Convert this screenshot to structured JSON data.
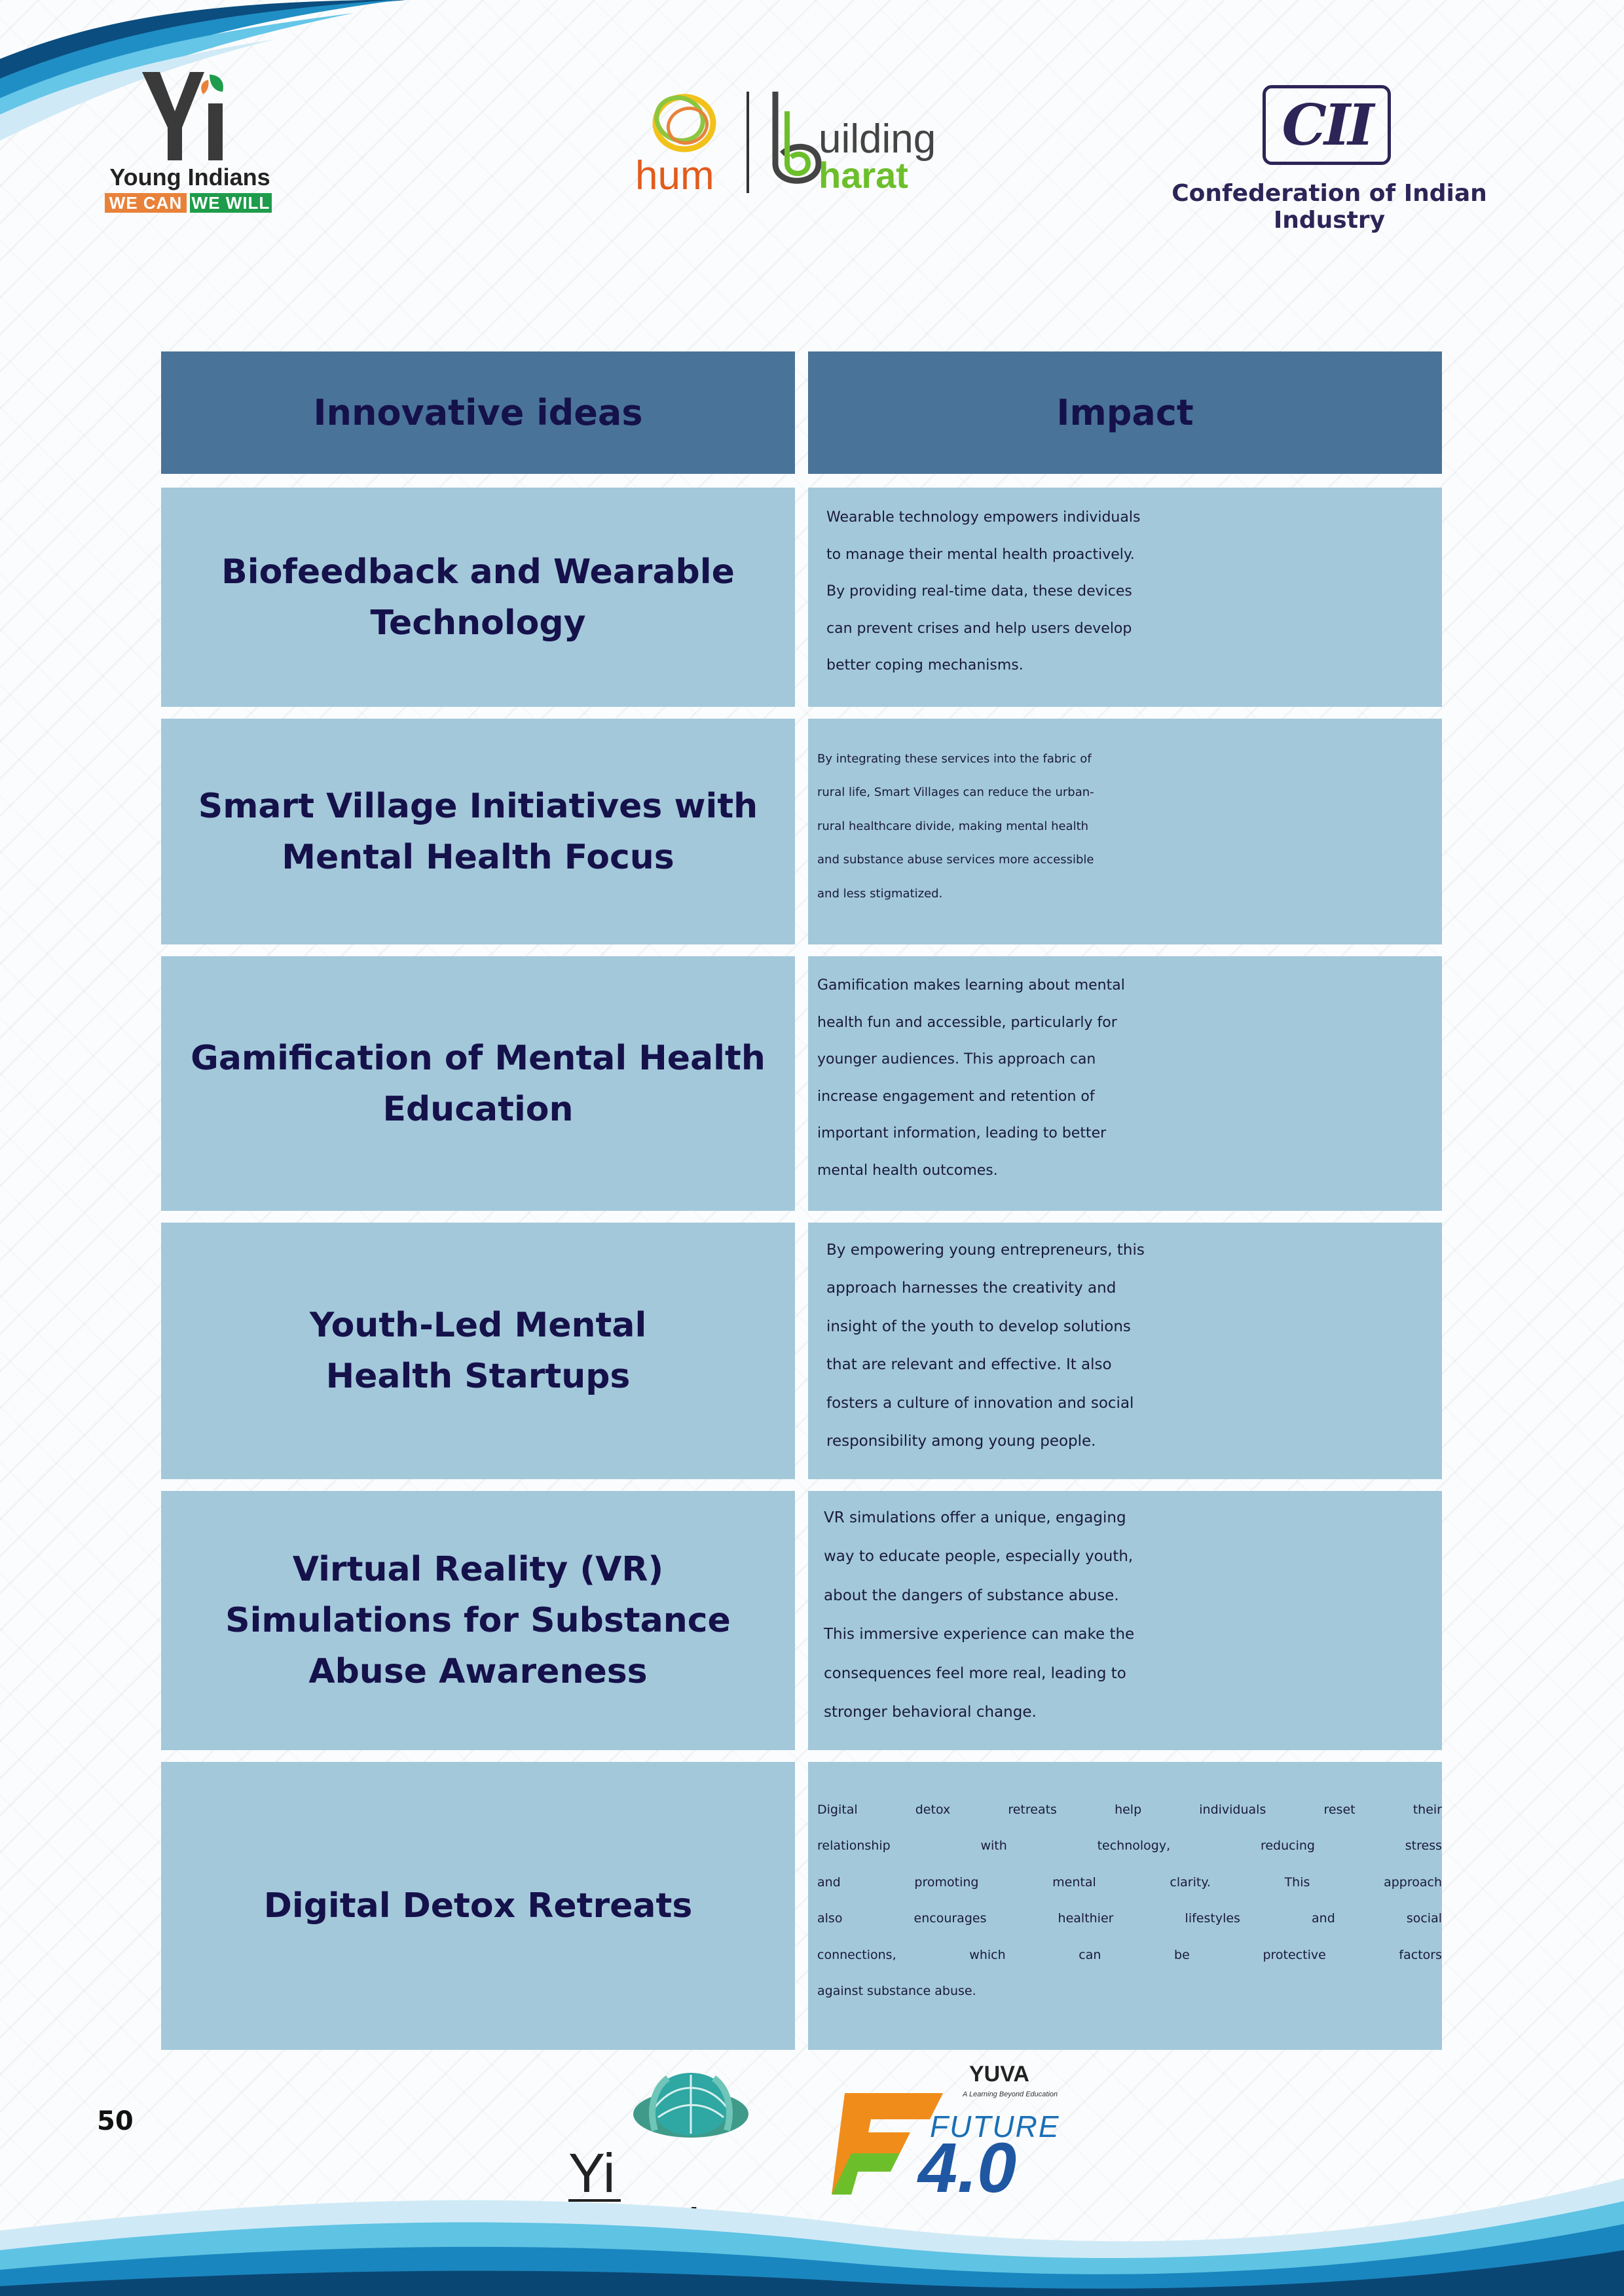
{
  "header": {
    "yi_logo": {
      "mark": "Yi",
      "name": "Young Indians",
      "tag_left": "WE CAN",
      "tag_right": "WE WILL"
    },
    "hum_logo": {
      "left": "hum",
      "right_top": "uilding",
      "right_bottom": "harat"
    },
    "cii_logo": {
      "mark": "CII",
      "name": "Confederation of Indian Industry"
    }
  },
  "table": {
    "headers": [
      "Innovative ideas",
      "Impact"
    ],
    "rows": [
      {
        "idea": [
          "Biofeedback and Wearable",
          "Technology"
        ],
        "impact": [
          "Wearable technology empowers individuals",
          "to manage their mental health proactively.",
          "By providing real-time data, these devices",
          "can prevent crises and help users develop",
          "better coping mechanisms."
        ]
      },
      {
        "idea": [
          "Smart Village Initiatives with",
          "Mental Health Focus"
        ],
        "impact": [
          "By integrating these services into the fabric of",
          "rural life, Smart Villages can reduce the urban-",
          "rural healthcare divide, making mental health",
          "and substance abuse services more accessible",
          "and less stigmatized."
        ]
      },
      {
        "idea": [
          "Gamification of Mental Health",
          "Education"
        ],
        "impact": [
          "Gamification makes learning about mental",
          "health fun and accessible, particularly for",
          "younger audiences. This approach can",
          "increase engagement and retention of",
          "important information, leading to better",
          "mental health outcomes."
        ]
      },
      {
        "idea": [
          "Youth-Led Mental",
          "Health Startups"
        ],
        "impact": [
          "By empowering young entrepreneurs, this",
          "approach harnesses the creativity and",
          "insight of the youth to develop solutions",
          "that are relevant and effective. It also",
          "fosters a culture of innovation and social",
          "responsibility among young people."
        ]
      },
      {
        "idea": [
          "Virtual Reality (VR)",
          "Simulations for Substance",
          "Abuse Awareness"
        ],
        "impact": [
          "VR simulations offer a unique, engaging",
          "way to educate people, especially youth,",
          "about the dangers of substance abuse.",
          "This immersive experience can make the",
          "consequences feel more real, leading to",
          "stronger behavioral change."
        ]
      },
      {
        "idea": [
          "Digital Detox Retreats"
        ],
        "impact": [
          "Digital detox retreats help individuals reset their",
          "relationship with technology, reducing stress",
          "and promoting mental clarity. This approach",
          "also encourages healthier lifestyles and social",
          "connections, which can be protective factors",
          "against substance abuse."
        ]
      }
    ]
  },
  "footer": {
    "page_number": "50",
    "yi_health_logo": "Yi health",
    "future_logo": {
      "yuva": "YUVA",
      "yuva_sub": "A Learning Beyond Education",
      "future": "FUTURE",
      "version": "4.0"
    }
  }
}
